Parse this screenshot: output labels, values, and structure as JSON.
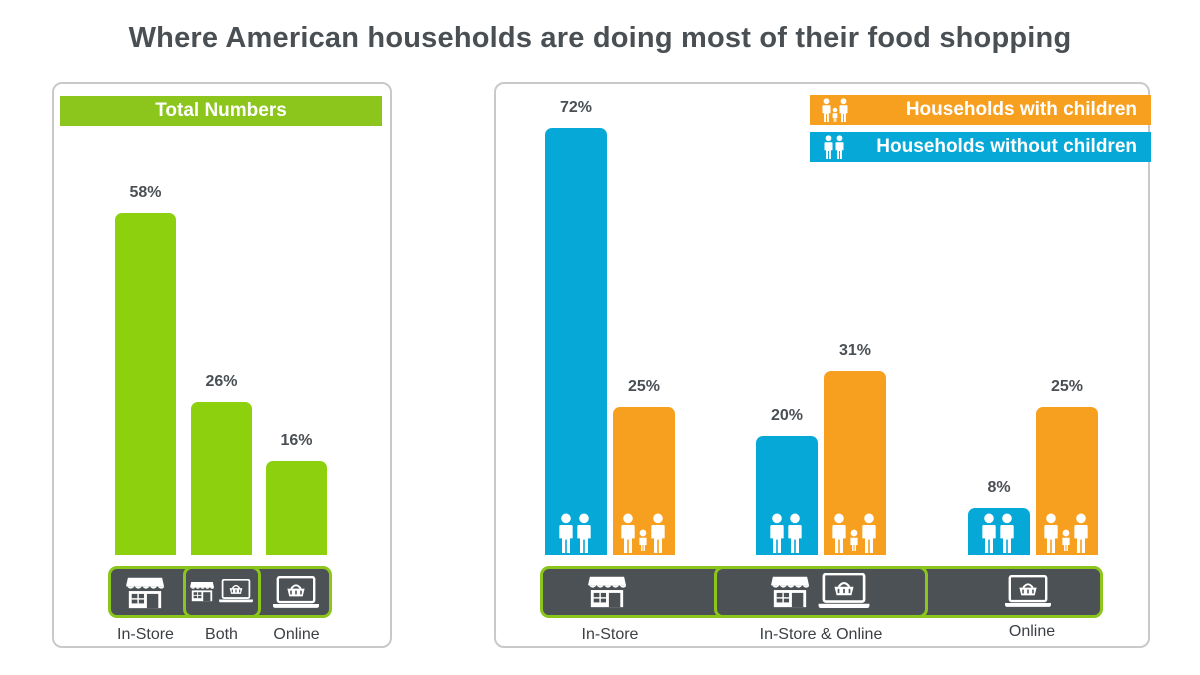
{
  "title": "Where American households are doing most of their food shopping",
  "left_panel": {
    "banner": "Total Numbers"
  },
  "right_panel": {
    "legend": [
      {
        "label": "Households with children",
        "color": "#f7a020",
        "icon": "family-icon"
      },
      {
        "label": "Households without children",
        "color": "#06a8d8",
        "icon": "couple-icon"
      }
    ]
  },
  "chart_data": [
    {
      "type": "bar",
      "title": "Total Numbers",
      "categories": [
        "In-Store",
        "Both",
        "Online"
      ],
      "values": [
        58,
        26,
        16
      ],
      "value_labels": [
        "58%",
        "26%",
        "16%"
      ],
      "color": "#8dd00e",
      "category_icons": [
        "store-icon",
        "store-and-laptop-icon",
        "laptop-basket-icon"
      ]
    },
    {
      "type": "bar",
      "categories": [
        "In-Store",
        "In-Store & Online",
        "Online"
      ],
      "series": [
        {
          "name": "Households without children",
          "values": [
            72,
            20,
            8
          ],
          "value_labels": [
            "72%",
            "20%",
            "8%"
          ],
          "color": "#06a8d8"
        },
        {
          "name": "Households with children",
          "values": [
            25,
            31,
            25
          ],
          "value_labels": [
            "25%",
            "31%",
            "25%"
          ],
          "color": "#f7a020"
        }
      ],
      "legend_position": "top-right",
      "category_icons": [
        "store-icon",
        "store-and-laptop-icon",
        "laptop-basket-icon"
      ]
    }
  ]
}
